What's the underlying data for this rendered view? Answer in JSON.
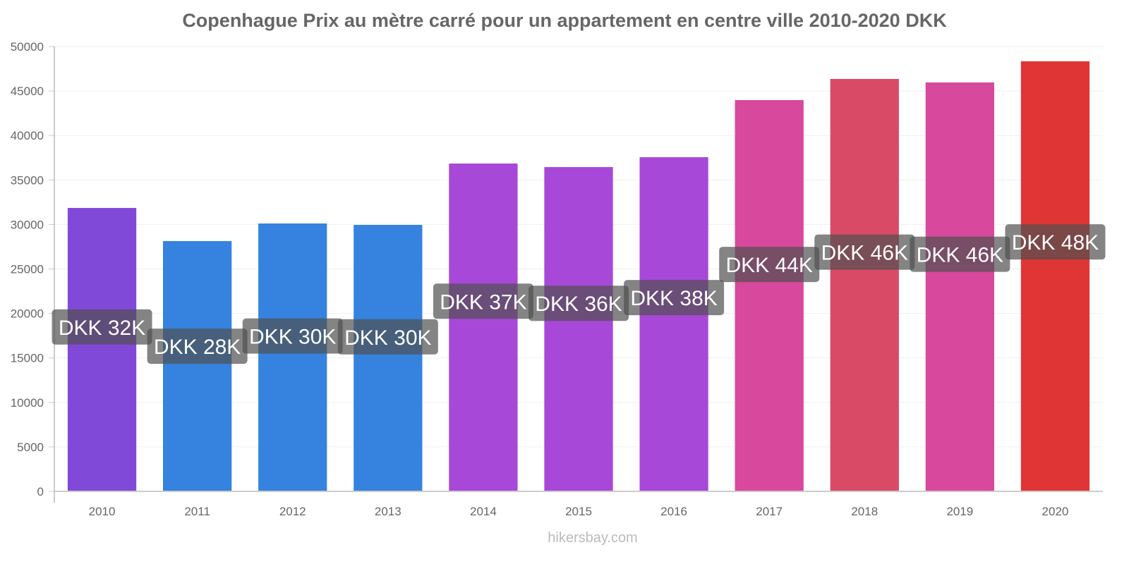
{
  "chart_data": {
    "type": "bar",
    "title": "Copenhague Prix au mètre carré pour un appartement en centre ville 2010-2020 DKK",
    "xlabel": "",
    "ylabel": "",
    "ylim": [
      0,
      50000
    ],
    "yticks": [
      0,
      5000,
      10000,
      15000,
      20000,
      25000,
      30000,
      35000,
      40000,
      45000,
      50000
    ],
    "grid": true,
    "legend": "none",
    "categories": [
      "2010",
      "2011",
      "2012",
      "2013",
      "2014",
      "2015",
      "2016",
      "2017",
      "2018",
      "2019",
      "2020"
    ],
    "values": [
      31860,
      28130,
      30110,
      29950,
      36850,
      36450,
      37560,
      43980,
      46360,
      45960,
      48340
    ],
    "data_labels": [
      "DKK 32K",
      "DKK 28K",
      "DKK 30K",
      "DKK 30K",
      "DKK 37K",
      "DKK 36K",
      "DKK 38K",
      "DKK 44K",
      "DKK 46K",
      "DKK 46K",
      "DKK 48K"
    ],
    "colors": [
      "#8049d7",
      "#3583de",
      "#3583de",
      "#3583de",
      "#a848d8",
      "#a848d8",
      "#a848d8",
      "#d8489c",
      "#d94a67",
      "#d8489c",
      "#e03535"
    ]
  },
  "watermark": "hikersbay.com"
}
